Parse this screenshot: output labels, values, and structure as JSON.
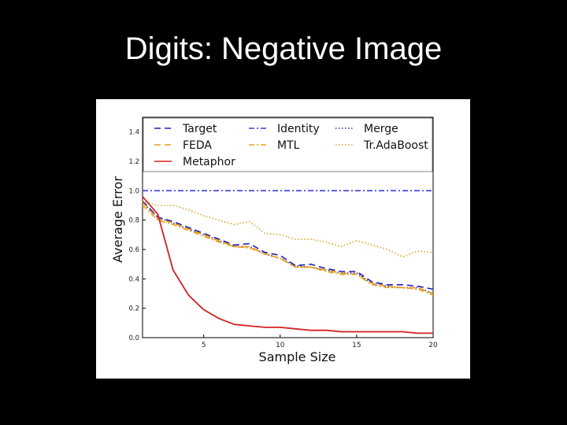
{
  "slide": {
    "title": "Digits: Negative Image"
  },
  "chart_data": {
    "type": "line",
    "xlabel": "Sample Size",
    "ylabel": "Average Error",
    "xlim": [
      1,
      20
    ],
    "ylim": [
      0.0,
      1.5
    ],
    "xticks": [
      5,
      10,
      15,
      20
    ],
    "yticks": [
      0.0,
      0.2,
      0.4,
      0.6,
      0.8,
      1.0,
      1.2,
      1.4
    ],
    "ytick_labels": [
      "0.0",
      "0.2",
      "0.4",
      "0.6",
      "0.8",
      "1.0",
      "1.2",
      "1.4"
    ],
    "grid": false,
    "legend_position": "top",
    "x": [
      1,
      2,
      3,
      4,
      5,
      6,
      7,
      8,
      9,
      10,
      11,
      12,
      13,
      14,
      15,
      16,
      17,
      18,
      19,
      20
    ],
    "series": [
      {
        "name": "Target",
        "color": "#1f1fb4",
        "dash": "8,5",
        "values": [
          0.93,
          0.82,
          0.79,
          0.75,
          0.71,
          0.67,
          0.63,
          0.64,
          0.58,
          0.56,
          0.49,
          0.5,
          0.47,
          0.45,
          0.45,
          0.38,
          0.36,
          0.36,
          0.35,
          0.33
        ]
      },
      {
        "name": "Identity",
        "color": "#3a3ad6",
        "dash": "7,3,2,3",
        "values": [
          1.0,
          1.0,
          1.0,
          1.0,
          1.0,
          1.0,
          1.0,
          1.0,
          1.0,
          1.0,
          1.0,
          1.0,
          1.0,
          1.0,
          1.0,
          1.0,
          1.0,
          1.0,
          1.0,
          1.0
        ]
      },
      {
        "name": "Merge",
        "color": "#2b2b8c",
        "dash": "1.5,2.5",
        "values": [
          0.92,
          0.82,
          0.78,
          0.74,
          0.7,
          0.66,
          0.62,
          0.62,
          0.57,
          0.54,
          0.49,
          0.48,
          0.46,
          0.44,
          0.44,
          0.37,
          0.35,
          0.34,
          0.34,
          0.3
        ]
      },
      {
        "name": "FEDA",
        "color": "#e89a1a",
        "dash": "8,5",
        "values": [
          0.92,
          0.81,
          0.78,
          0.74,
          0.7,
          0.66,
          0.62,
          0.62,
          0.57,
          0.54,
          0.48,
          0.48,
          0.46,
          0.44,
          0.43,
          0.37,
          0.35,
          0.34,
          0.34,
          0.3
        ]
      },
      {
        "name": "MTL",
        "color": "#e8a21a",
        "dash": "7,3,2,3",
        "values": [
          0.9,
          0.8,
          0.77,
          0.73,
          0.69,
          0.65,
          0.62,
          0.61,
          0.57,
          0.54,
          0.48,
          0.48,
          0.45,
          0.43,
          0.43,
          0.36,
          0.34,
          0.34,
          0.33,
          0.29
        ]
      },
      {
        "name": "Tr.AdaBoost",
        "color": "#d9a520",
        "dash": "1.5,2.5",
        "values": [
          0.93,
          0.9,
          0.9,
          0.87,
          0.83,
          0.8,
          0.77,
          0.79,
          0.71,
          0.7,
          0.67,
          0.67,
          0.65,
          0.62,
          0.66,
          0.63,
          0.6,
          0.55,
          0.59,
          0.58
        ]
      },
      {
        "name": "Metaphor",
        "color": "#d42020",
        "dash": "",
        "values": [
          0.96,
          0.84,
          0.46,
          0.29,
          0.19,
          0.13,
          0.09,
          0.08,
          0.07,
          0.07,
          0.06,
          0.05,
          0.05,
          0.04,
          0.04,
          0.04,
          0.04,
          0.04,
          0.03,
          0.03
        ]
      }
    ],
    "legend_order": [
      "Target",
      "Identity",
      "Merge",
      "FEDA",
      "MTL",
      "Tr.AdaBoost",
      "Metaphor"
    ]
  }
}
